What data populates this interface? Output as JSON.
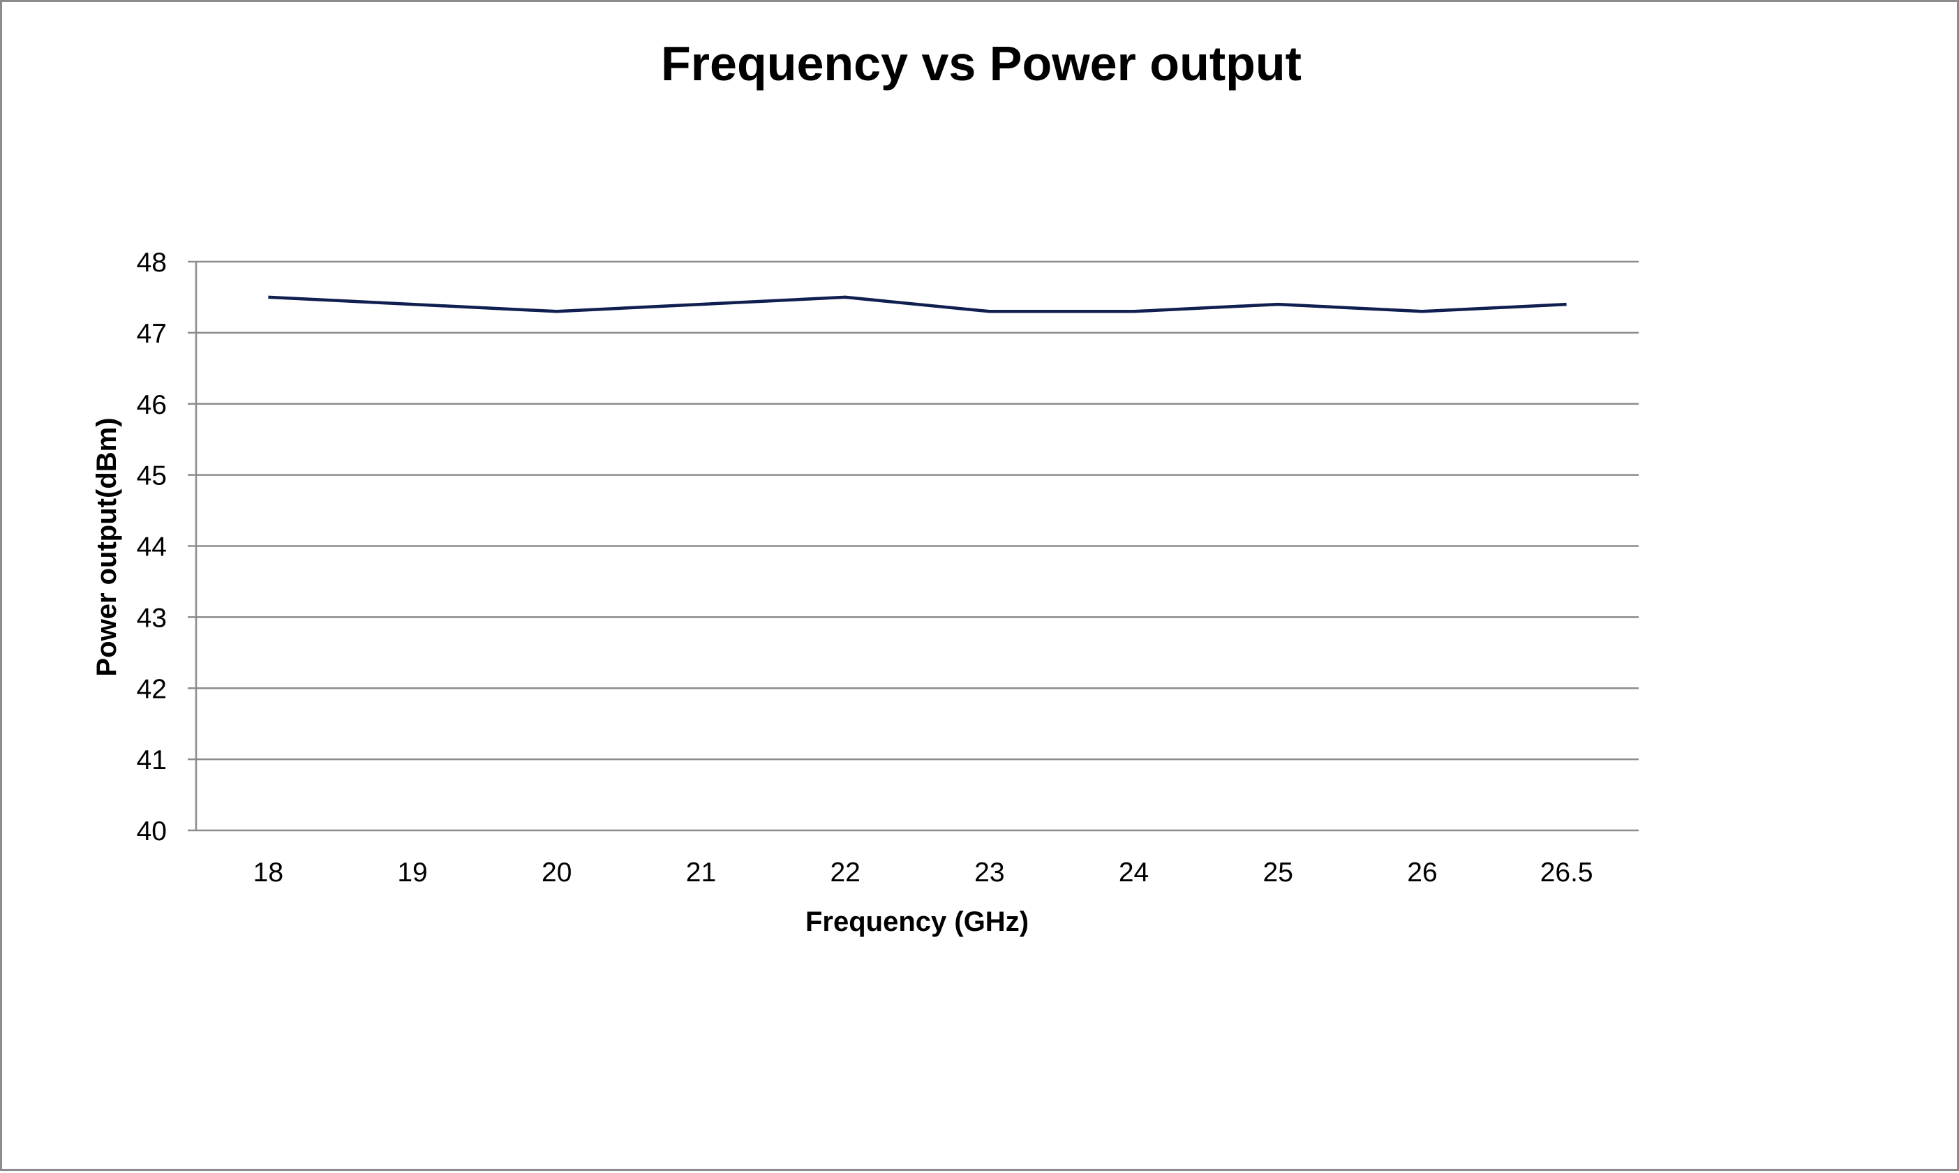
{
  "chart_data": {
    "type": "line",
    "title": "Frequency vs Power output",
    "xlabel": "Frequency (GHz)",
    "ylabel": "Power output(dBm)",
    "categories": [
      "18",
      "19",
      "20",
      "21",
      "22",
      "23",
      "24",
      "25",
      "26",
      "26.5"
    ],
    "series": [
      {
        "values": [
          47.5,
          47.4,
          47.3,
          47.4,
          47.5,
          47.3,
          47.3,
          47.4,
          47.3,
          47.4
        ],
        "color": "#0f1f4f"
      }
    ],
    "ylim": [
      40,
      48
    ],
    "yticks": [
      "40",
      "41",
      "42",
      "43",
      "44",
      "45",
      "46",
      "47",
      "48"
    ],
    "grid": true,
    "legend": "none"
  },
  "colors": {
    "gridline": "#8c8c8c",
    "frame": "#8c8c8c",
    "series": "#0f1f4f"
  }
}
